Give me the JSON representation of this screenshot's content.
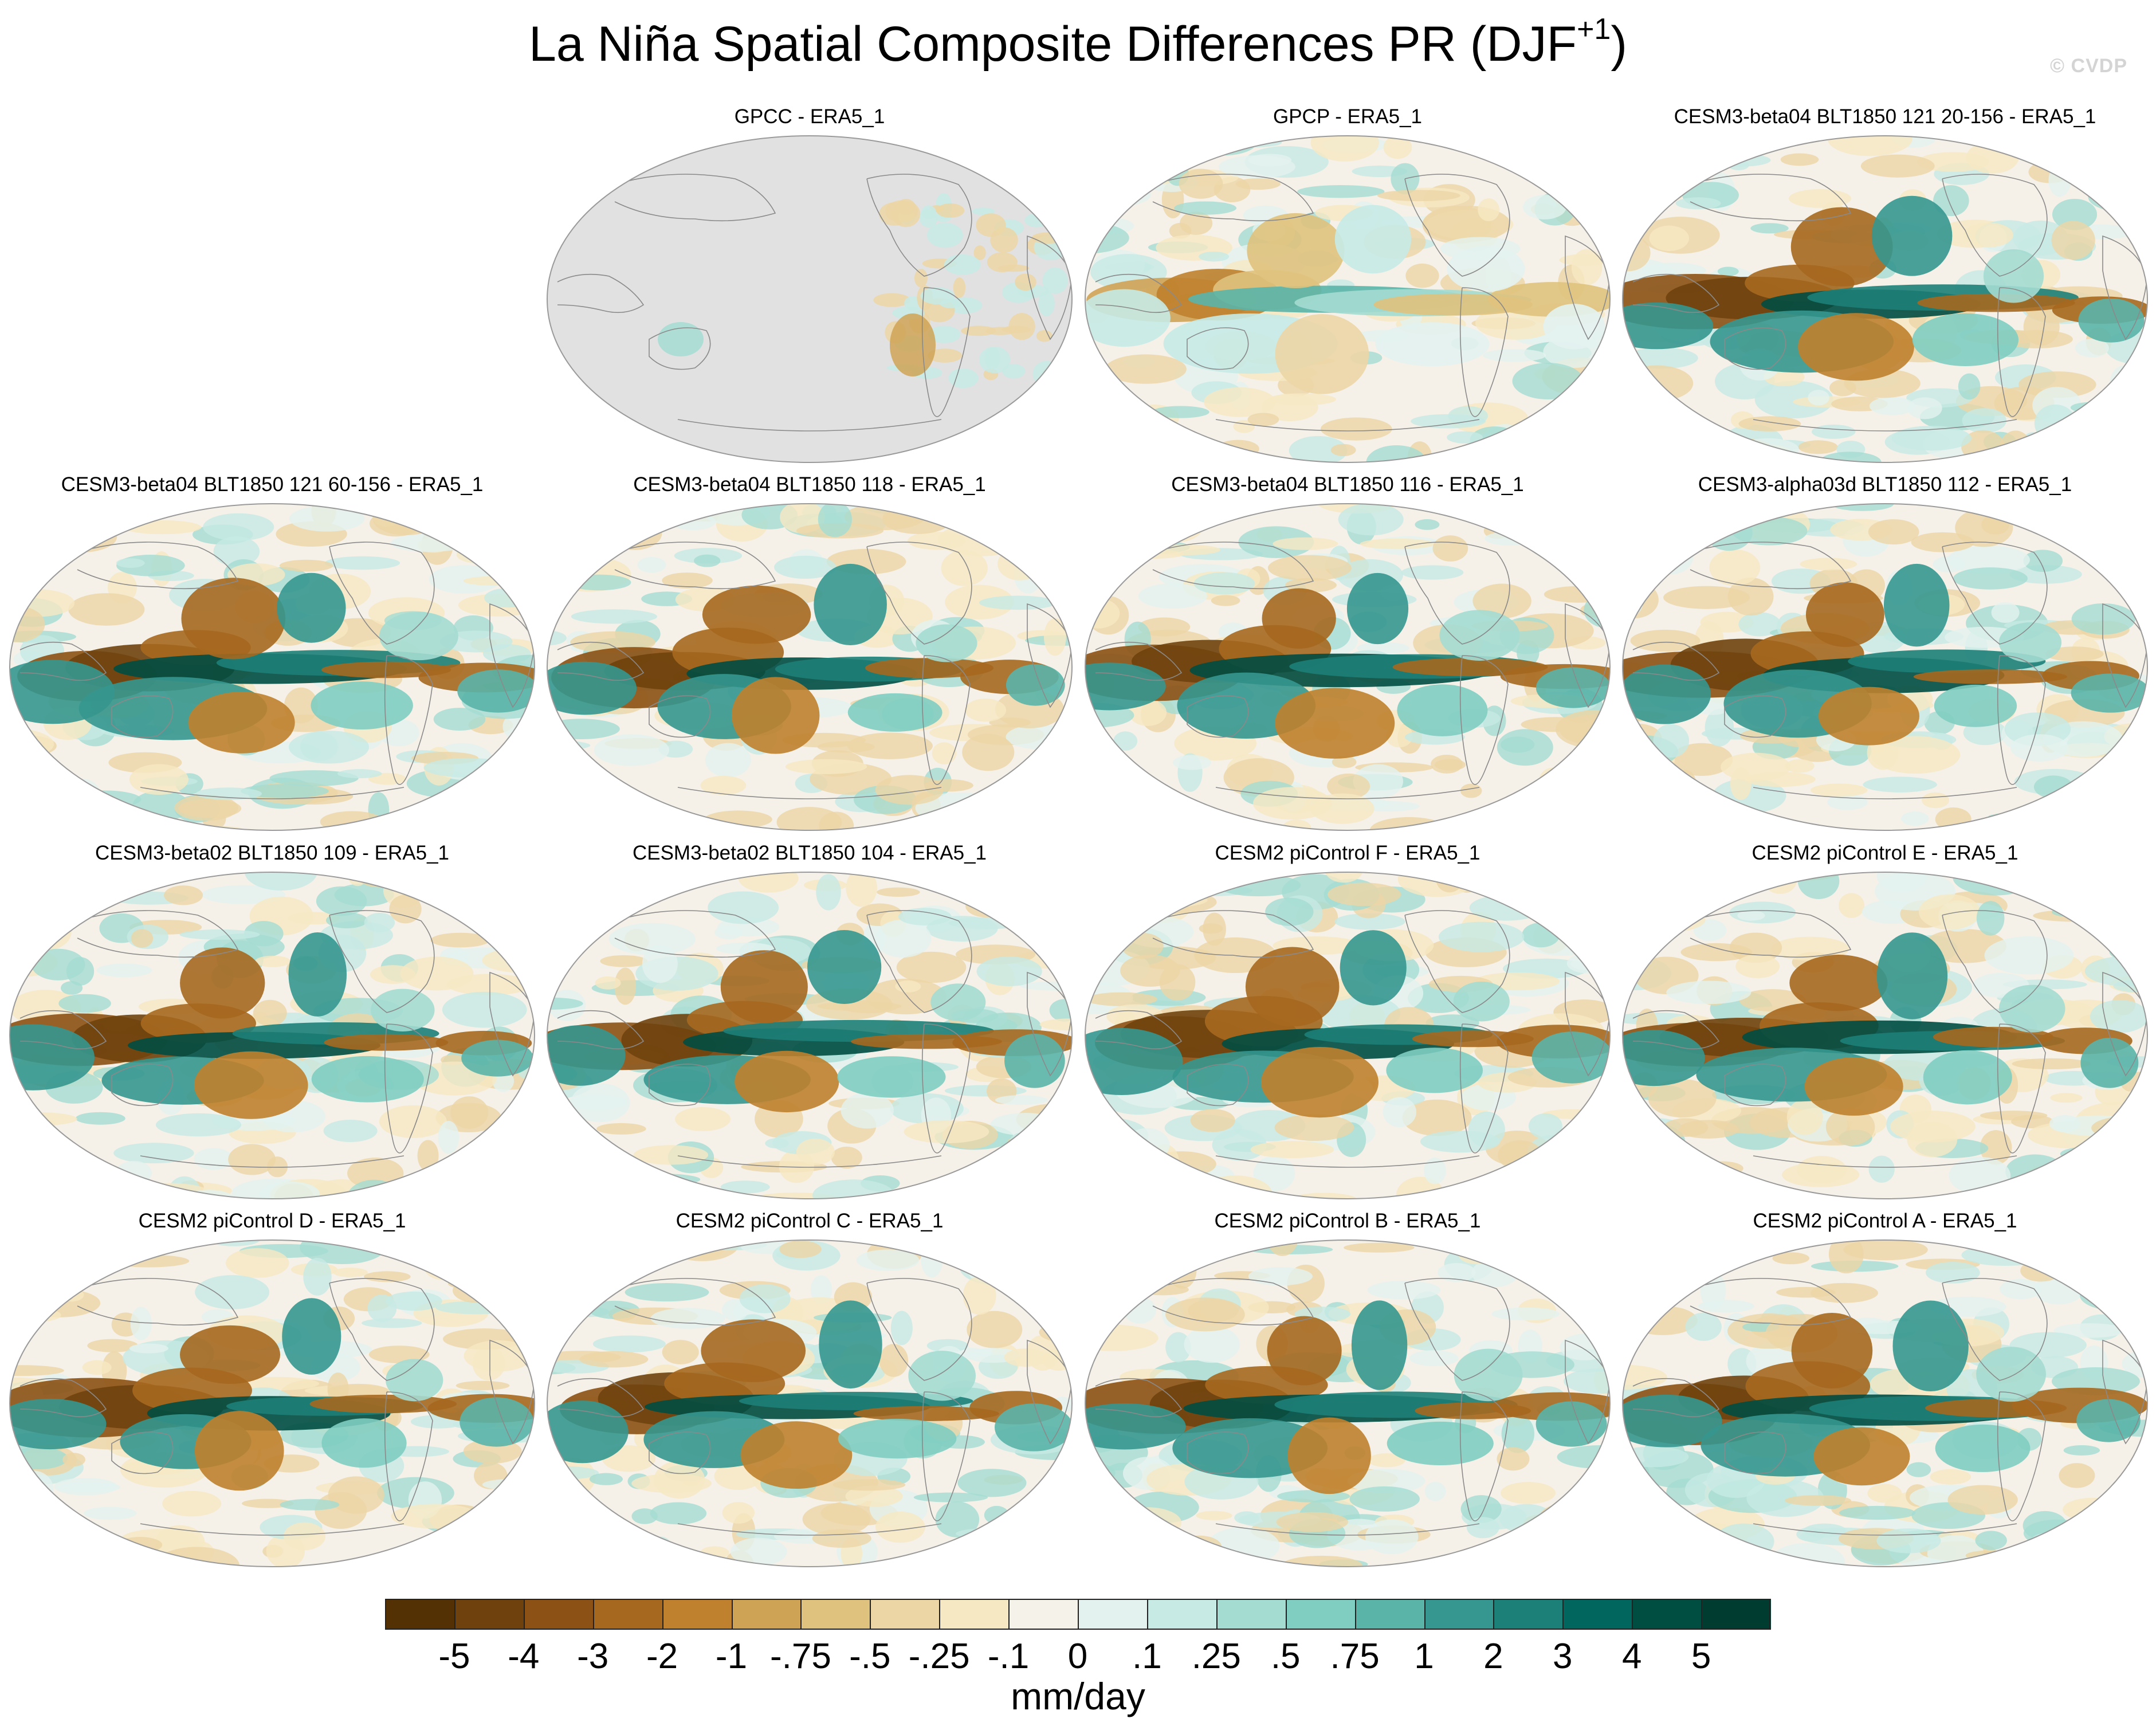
{
  "title": {
    "main": "La Niña Spatial Composite Differences PR (DJF",
    "superscript": "+1",
    "close": ")"
  },
  "watermark": "© CVDP",
  "colorbar": {
    "units": "mm/day",
    "labels": [
      "-5",
      "-4",
      "-3",
      "-2",
      "-1",
      "-.75",
      "-.5",
      "-.25",
      "-.1",
      "0",
      ".1",
      ".25",
      ".5",
      ".75",
      "1",
      "2",
      "3",
      "4",
      "5"
    ],
    "colors": [
      "#543005",
      "#6f420d",
      "#8c5114",
      "#a6681f",
      "#bf812d",
      "#cfa356",
      "#dfc27d",
      "#ecd6a6",
      "#f6e8c3",
      "#f5f2ea",
      "#e3f2ef",
      "#c7eae5",
      "#a4dcd2",
      "#80cdc1",
      "#5ab4a8",
      "#35978f",
      "#1d8078",
      "#01665e",
      "#004d42",
      "#003c30"
    ]
  },
  "panels": [
    {
      "title": "GPCC - ERA5_1",
      "variant": "land-only",
      "row": 0,
      "col": 1,
      "seed": 3
    },
    {
      "title": "GPCP - ERA5_1",
      "variant": "weak",
      "row": 0,
      "col": 2,
      "seed": 7
    },
    {
      "title": "CESM3-beta04 BLT1850 121 20-156 - ERA5_1",
      "variant": "strong",
      "row": 0,
      "col": 3,
      "seed": 11
    },
    {
      "title": "CESM3-beta04 BLT1850 121 60-156 - ERA5_1",
      "variant": "strong",
      "row": 1,
      "col": 0,
      "seed": 13
    },
    {
      "title": "CESM3-beta04 BLT1850 118 - ERA5_1",
      "variant": "strong",
      "row": 1,
      "col": 1,
      "seed": 17
    },
    {
      "title": "CESM3-beta04 BLT1850 116 - ERA5_1",
      "variant": "strong",
      "row": 1,
      "col": 2,
      "seed": 19
    },
    {
      "title": "CESM3-alpha03d BLT1850 112 - ERA5_1",
      "variant": "strong",
      "row": 1,
      "col": 3,
      "seed": 23
    },
    {
      "title": "CESM3-beta02 BLT1850 109 - ERA5_1",
      "variant": "strong",
      "row": 2,
      "col": 0,
      "seed": 29
    },
    {
      "title": "CESM3-beta02 BLT1850 104 - ERA5_1",
      "variant": "strong",
      "row": 2,
      "col": 1,
      "seed": 31
    },
    {
      "title": "CESM2 piControl F - ERA5_1",
      "variant": "strong",
      "row": 2,
      "col": 2,
      "seed": 37
    },
    {
      "title": "CESM2 piControl E - ERA5_1",
      "variant": "strong",
      "row": 2,
      "col": 3,
      "seed": 41
    },
    {
      "title": "CESM2 piControl D - ERA5_1",
      "variant": "strong",
      "row": 3,
      "col": 0,
      "seed": 43
    },
    {
      "title": "CESM2 piControl C - ERA5_1",
      "variant": "strong",
      "row": 3,
      "col": 1,
      "seed": 47
    },
    {
      "title": "CESM2 piControl B - ERA5_1",
      "variant": "strong",
      "row": 3,
      "col": 2,
      "seed": 53
    },
    {
      "title": "CESM2 piControl A - ERA5_1",
      "variant": "strong",
      "row": 3,
      "col": 3,
      "seed": 59
    }
  ]
}
